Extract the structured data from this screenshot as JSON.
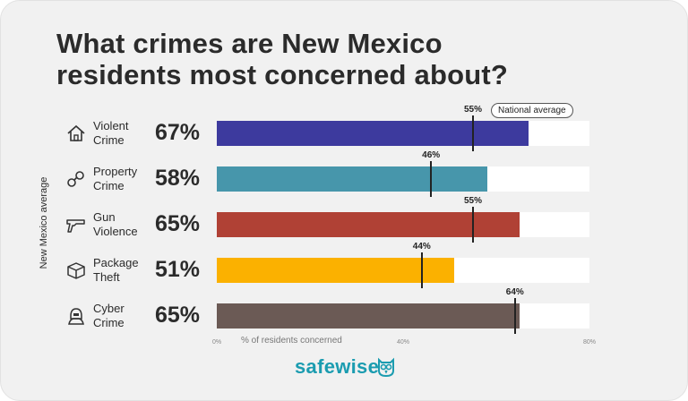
{
  "title": "What crimes are New Mexico residents most concerned about?",
  "chart_data": {
    "type": "bar",
    "orientation": "horizontal",
    "title": "What crimes are New Mexico residents most concerned about?",
    "ylabel": "New Mexico average",
    "xlabel": "% of residents concerned",
    "xlim": [
      0,
      80
    ],
    "xticks": [
      "0%",
      "40%",
      "80%"
    ],
    "categories": [
      "Violent\nCrime",
      "Property\nCrime",
      "Gun\nViolence",
      "Package\nTheft",
      "Cyber\nCrime"
    ],
    "values": [
      67,
      58,
      65,
      51,
      65
    ],
    "value_labels": [
      "67%",
      "58%",
      "65%",
      "51%",
      "65%"
    ],
    "national_average": [
      55,
      46,
      55,
      44,
      64
    ],
    "national_labels": [
      "55%",
      "46%",
      "55%",
      "44%",
      "64%"
    ],
    "national_legend": "National average",
    "colors": [
      "#3d3a9e",
      "#4796ab",
      "#b04135",
      "#fbb100",
      "#6b5a55"
    ],
    "icons": [
      "house-icon",
      "handcuffs-icon",
      "gun-icon",
      "package-icon",
      "hacker-icon"
    ]
  },
  "brand": "safewise"
}
